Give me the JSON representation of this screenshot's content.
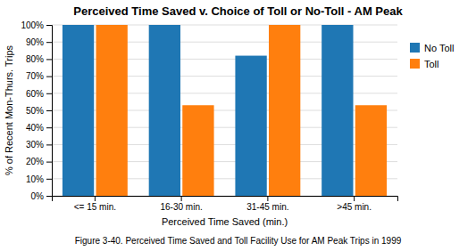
{
  "chart_data": {
    "type": "bar",
    "title": "Perceived Time Saved v. Choice of Toll or No-Toll - AM Peak",
    "xlabel": "Perceived Time Saved (min.)",
    "ylabel": "% of Recent Mon-Thurs. Trips",
    "caption": "Figure 3-40. Perceived Time Saved and Toll Facility Use for AM Peak Trips in 1999",
    "categories": [
      "<= 15 min.",
      "16-30 min.",
      "31-45 min.",
      ">45 min."
    ],
    "series": [
      {
        "name": "No Toll",
        "values": [
          100,
          100,
          82,
          100
        ]
      },
      {
        "name": "Toll",
        "values": [
          100,
          53,
          100,
          53
        ]
      }
    ],
    "ylim": [
      0,
      100
    ],
    "yticks": [
      {
        "value": 0,
        "label": "0%"
      },
      {
        "value": 10,
        "label": "10%"
      },
      {
        "value": 20,
        "label": "20%"
      },
      {
        "value": 30,
        "label": "30%"
      },
      {
        "value": 40,
        "label": "40%"
      },
      {
        "value": 50,
        "label": "50%"
      },
      {
        "value": 60,
        "label": "60%"
      },
      {
        "value": 70,
        "label": "70%"
      },
      {
        "value": 80,
        "label": "80%"
      },
      {
        "value": 90,
        "label": "90%"
      },
      {
        "value": 100,
        "label": "100%"
      }
    ],
    "grid": true,
    "legend": "right"
  }
}
